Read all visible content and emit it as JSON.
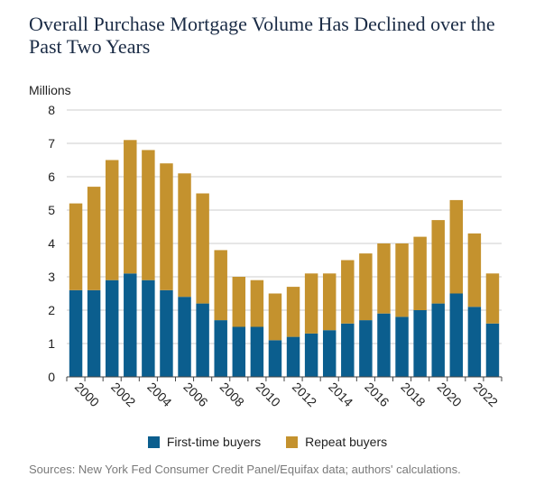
{
  "title": "Overall Purchase Mortgage Volume Has Declined over the Past Two Years",
  "source": "Sources: New York Fed Consumer Credit Panel/Equifax data; authors' calculations.",
  "colors": {
    "first_time": "#0b5e8e",
    "repeat": "#c4922e",
    "grid": "#cccccc"
  },
  "chart_data": {
    "type": "bar",
    "stacked": true,
    "ylabel": "Millions",
    "ylim": [
      0,
      8
    ],
    "yticks": [
      0,
      1,
      2,
      3,
      4,
      5,
      6,
      7,
      8
    ],
    "grid": true,
    "legend_position": "bottom",
    "categories": [
      2000,
      2001,
      2002,
      2003,
      2004,
      2005,
      2006,
      2007,
      2008,
      2009,
      2010,
      2011,
      2012,
      2013,
      2014,
      2015,
      2016,
      2017,
      2018,
      2019,
      2020,
      2021,
      2022,
      2023
    ],
    "xtick_labels": [
      "2000",
      "2002",
      "2004",
      "2006",
      "2008",
      "2010",
      "2012",
      "2014",
      "2016",
      "2018",
      "2020",
      "2022"
    ],
    "series": [
      {
        "name": "First-time buyers",
        "values": [
          2.6,
          2.6,
          2.9,
          3.1,
          2.9,
          2.6,
          2.4,
          2.2,
          1.7,
          1.5,
          1.5,
          1.1,
          1.2,
          1.3,
          1.4,
          1.6,
          1.7,
          1.9,
          1.8,
          2.0,
          2.2,
          2.5,
          2.1,
          1.6
        ]
      },
      {
        "name": "Repeat buyers",
        "values": [
          2.6,
          3.1,
          3.6,
          4.0,
          3.9,
          3.8,
          3.7,
          3.3,
          2.1,
          1.5,
          1.4,
          1.4,
          1.5,
          1.8,
          1.7,
          1.9,
          2.0,
          2.1,
          2.2,
          2.2,
          2.5,
          2.8,
          2.2,
          1.5
        ]
      }
    ]
  }
}
